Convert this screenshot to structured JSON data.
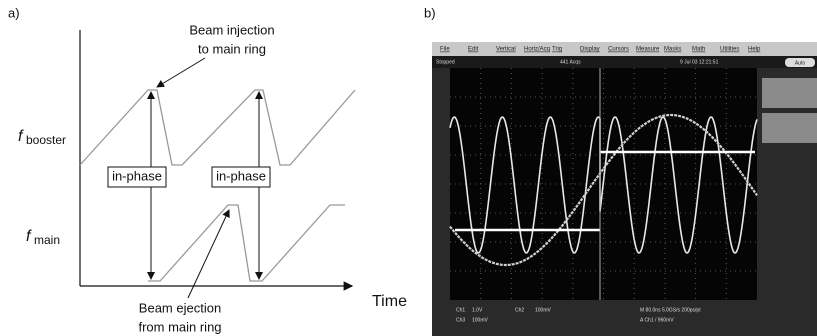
{
  "panel_a": {
    "label": "a)",
    "annotations": {
      "injection": [
        "Beam injection",
        "to main ring"
      ],
      "ejection": [
        "Beam ejection",
        "from main ring"
      ]
    },
    "signals": [
      {
        "symbol": "f",
        "subscript": "booster"
      },
      {
        "symbol": "f",
        "subscript": "main"
      }
    ],
    "phase_labels": [
      "in-phase",
      "in-phase"
    ],
    "x_axis_label": "Time"
  },
  "panel_b": {
    "label": "b)",
    "menu": [
      "File",
      "Edit",
      "Vertical",
      "Horiz/Acq",
      "Trig",
      "Display",
      "Cursors",
      "Measure",
      "Masks",
      "Math",
      "Utilities",
      "Help"
    ],
    "status_top": [
      "Stopped",
      "441 Acqs",
      "9 Jul 03 12:21:51"
    ],
    "button": "Auto",
    "status_bottom": [
      "Ch1",
      "1.0V",
      "Ch2",
      "100mV",
      "M 80.0ns 5.0GS/s 200ps/pt",
      "Ch3",
      "100mV",
      "A Ch1 / 960mV"
    ]
  }
}
